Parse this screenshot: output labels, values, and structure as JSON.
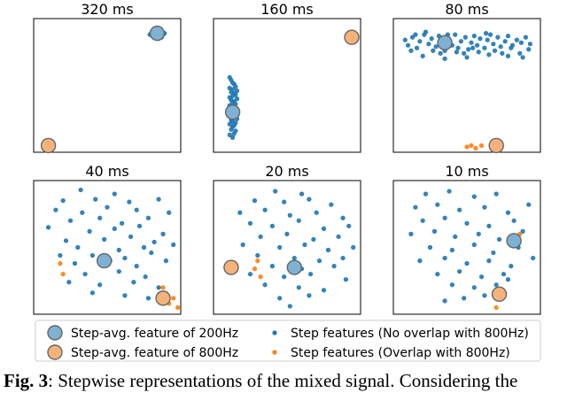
{
  "chart_data": {
    "type": "scatter",
    "panels": [
      {
        "title": "320 ms",
        "xlim": [
          0,
          100
        ],
        "ylim": [
          0,
          100
        ],
        "series": [
          {
            "name": "Step features (No overlap with 800Hz)",
            "x": [
              79,
              81,
              82,
              83,
              84,
              85,
              86,
              87,
              88,
              84,
              85,
              86,
              83,
              82,
              87,
              80,
              89,
              85,
              84
            ],
            "y": [
              88,
              89,
              90,
              89,
              90,
              89,
              91,
              89,
              88,
              86,
              85,
              87,
              87,
              88,
              86,
              89,
              89,
              90,
              88
            ]
          },
          {
            "name": "Step features (Overlap with 800Hz)",
            "x": [
              9,
              12,
              8,
              11
            ],
            "y": [
              5,
              5,
              6,
              4
            ]
          },
          {
            "name": "Step-avg. feature of 200Hz",
            "x": [
              84
            ],
            "y": [
              89
            ]
          },
          {
            "name": "Step-avg. feature of 800Hz",
            "x": [
              10
            ],
            "y": [
              5
            ]
          }
        ]
      },
      {
        "title": "160 ms",
        "xlim": [
          0,
          100
        ],
        "ylim": [
          0,
          100
        ],
        "series": [
          {
            "name": "Step features (No overlap with 800Hz)",
            "x": [
              11,
              12,
              13,
              14,
              15,
              11,
              13,
              16,
              12,
              14,
              15,
              13,
              11,
              16,
              12,
              14,
              13,
              15,
              11,
              13,
              12,
              16,
              14,
              11,
              15,
              13,
              12,
              14,
              16,
              12,
              13,
              15,
              11,
              14,
              13,
              12,
              15,
              14,
              11,
              13
            ],
            "y": [
              56,
              54,
              52,
              51,
              49,
              48,
              47,
              46,
              45,
              44,
              43,
              42,
              41,
              40,
              39,
              38,
              37,
              36,
              35,
              34,
              33,
              32,
              31,
              30,
              29,
              28,
              27,
              26,
              25,
              24,
              23,
              22,
              21,
              20,
              19,
              17,
              16,
              14,
              13,
              11
            ]
          },
          {
            "name": "Step features (Overlap with 800Hz)",
            "x": [
              94,
              96,
              92
            ],
            "y": [
              86,
              88,
              87
            ]
          },
          {
            "name": "Step-avg. feature of 200Hz",
            "x": [
              13
            ],
            "y": [
              30
            ]
          },
          {
            "name": "Step-avg. feature of 800Hz",
            "x": [
              94
            ],
            "y": [
              86
            ]
          }
        ]
      },
      {
        "title": "80 ms",
        "xlim": [
          0,
          100
        ],
        "ylim": [
          0,
          100
        ],
        "series": [
          {
            "name": "Step features (No overlap with 800Hz)",
            "x": [
              8,
              10,
              13,
              16,
              18,
              21,
              24,
              26,
              29,
              31,
              33,
              35,
              38,
              40,
              42,
              44,
              46,
              49,
              51,
              53,
              55,
              57,
              59,
              62,
              64,
              66,
              68,
              71,
              73,
              76,
              78,
              81,
              84,
              87,
              90,
              93,
              12,
              15,
              22,
              27,
              32,
              37,
              43,
              48,
              54,
              58,
              63,
              69,
              74,
              80,
              86,
              92,
              20,
              35,
              50,
              65,
              78,
              88
            ],
            "y": [
              84,
              80,
              86,
              78,
              83,
              88,
              81,
              85,
              79,
              87,
              82,
              76,
              84,
              80,
              88,
              78,
              83,
              86,
              77,
              82,
              87,
              80,
              85,
              78,
              84,
              88,
              81,
              86,
              79,
              83,
              87,
              80,
              84,
              82,
              86,
              81,
              76,
              88,
              90,
              76,
              74,
              88,
              75,
              74,
              78,
              75,
              89,
              76,
              74,
              78,
              74,
              77,
              72,
              70,
              71,
              73,
              72,
              71
            ]
          },
          {
            "name": "Step features (Overlap with 800Hz)",
            "x": [
              50,
              53,
              56,
              60
            ],
            "y": [
              4,
              5,
              3,
              5
            ]
          },
          {
            "name": "Step-avg. feature of 200Hz",
            "x": [
              35
            ],
            "y": [
              82
            ]
          },
          {
            "name": "Step-avg. feature of 800Hz",
            "x": [
              70
            ],
            "y": [
              5
            ]
          }
        ]
      },
      {
        "title": "40 ms",
        "xlim": [
          0,
          100
        ],
        "ylim": [
          0,
          100
        ],
        "series": [
          {
            "name": "Step features (No overlap with 800Hz)",
            "x": [
              32,
              55,
              20,
              42,
              65,
              85,
              15,
              33,
              50,
              70,
              92,
              25,
              45,
              60,
              78,
              10,
              38,
              55,
              72,
              88,
              22,
              48,
              66,
              82,
              30,
              58,
              75,
              95,
              18,
              40,
              62,
              80,
              28,
              52,
              70,
              90,
              35,
              58,
              76,
              24,
              45,
              68,
              85,
              40,
              62,
              78
            ],
            "y": [
              93,
              90,
              85,
              86,
              84,
              86,
              78,
              76,
              80,
              78,
              76,
              70,
              72,
              68,
              72,
              65,
              62,
              64,
              66,
              60,
              55,
              56,
              58,
              54,
              50,
              48,
              50,
              52,
              44,
              44,
              42,
              46,
              38,
              40,
              36,
              40,
              30,
              32,
              28,
              24,
              22,
              24,
              20,
              16,
              14,
              12
            ]
          },
          {
            "name": "Step features (Overlap with 800Hz)",
            "x": [
              20,
              18,
              88,
              95,
              92,
              98
            ],
            "y": [
              30,
              38,
              20,
              12,
              8,
              5
            ]
          },
          {
            "name": "Step-avg. feature of 200Hz",
            "x": [
              48
            ],
            "y": [
              40
            ]
          },
          {
            "name": "Step-avg. feature of 800Hz",
            "x": [
              88
            ],
            "y": [
              12
            ]
          }
        ]
      },
      {
        "title": "20 ms",
        "xlim": [
          0,
          100
        ],
        "ylim": [
          0,
          100
        ],
        "series": [
          {
            "name": "Step features (No overlap with 800Hz)",
            "x": [
              42,
              60,
              28,
              48,
              65,
              80,
              18,
              35,
              52,
              70,
              88,
              25,
              40,
              58,
              75,
              92,
              32,
              50,
              68,
              85,
              20,
              45,
              62,
              78,
              95,
              30,
              55,
              72,
              88,
              40,
              60,
              82,
              25,
              48,
              66,
              90,
              35,
              58,
              75,
              45,
              65,
              52
            ],
            "y": [
              92,
              90,
              85,
              84,
              86,
              82,
              76,
              78,
              74,
              76,
              72,
              68,
              66,
              70,
              64,
              66,
              58,
              60,
              56,
              58,
              52,
              50,
              52,
              48,
              50,
              44,
              42,
              40,
              42,
              36,
              34,
              36,
              30,
              28,
              30,
              26,
              22,
              20,
              18,
              12,
              14,
              6
            ]
          },
          {
            "name": "Step features (Overlap with 800Hz)",
            "x": [
              30,
              28,
              32
            ],
            "y": [
              40,
              34,
              28
            ]
          },
          {
            "name": "Step-avg. feature of 200Hz",
            "x": [
              55
            ],
            "y": [
              35
            ]
          },
          {
            "name": "Step-avg. feature of 800Hz",
            "x": [
              12
            ],
            "y": [
              35
            ]
          }
        ]
      },
      {
        "title": "10 ms",
        "xlim": [
          0,
          100
        ],
        "ylim": [
          0,
          100
        ],
        "series": [
          {
            "name": "Step features (No overlap with 800Hz)",
            "x": [
              22,
              38,
              55,
              70,
              15,
              30,
              45,
              62,
              78,
              92,
              20,
              35,
              50,
              65,
              82,
              12,
              28,
              42,
              58,
              72,
              88,
              25,
              40,
              55,
              68,
              85,
              18,
              35,
              50,
              65,
              80,
              95,
              30,
              45,
              60,
              75,
              40,
              55,
              70,
              48,
              62,
              35,
              78
            ],
            "y": [
              90,
              92,
              88,
              90,
              80,
              82,
              78,
              80,
              76,
              82,
              70,
              72,
              68,
              66,
              70,
              60,
              62,
              58,
              60,
              56,
              62,
              50,
              48,
              52,
              46,
              50,
              40,
              42,
              38,
              40,
              36,
              42,
              30,
              32,
              28,
              30,
              22,
              20,
              22,
              12,
              14,
              10,
              26
            ]
          },
          {
            "name": "Step features (Overlap with 800Hz)",
            "x": [
              82,
              86,
              70
            ],
            "y": [
              58,
              60,
              5
            ]
          },
          {
            "name": "Step-avg. feature of 200Hz",
            "x": [
              82
            ],
            "y": [
              55
            ]
          },
          {
            "name": "Step-avg. feature of 800Hz",
            "x": [
              72
            ],
            "y": [
              15
            ]
          }
        ]
      }
    ],
    "legend": {
      "placement": "bottom",
      "entries": [
        {
          "label": "Step-avg. feature of 200Hz",
          "kind": "big",
          "color": "#7fb1d3"
        },
        {
          "label": "Step-avg. feature of 800Hz",
          "kind": "big",
          "color": "#f5b37a"
        },
        {
          "label": "Step features (No overlap with 800Hz)",
          "kind": "small",
          "color": "#1f77b4"
        },
        {
          "label": "Step features (Overlap with 800Hz)",
          "kind": "small",
          "color": "#ff7f0e"
        }
      ]
    }
  },
  "caption": {
    "label": "Fig. 3",
    "text": ": Stepwise representations of the mixed signal. Considering the"
  }
}
